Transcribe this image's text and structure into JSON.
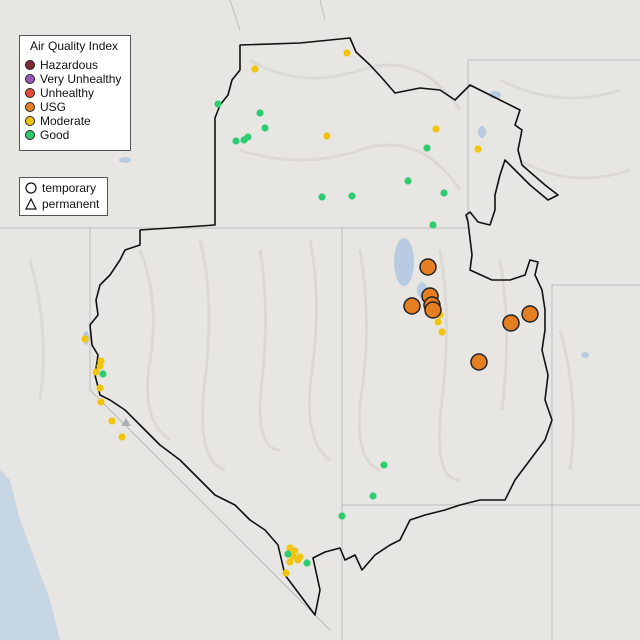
{
  "legend": {
    "aqi_title": "Air Quality Index",
    "aqi_items": [
      {
        "label": "Hazardous",
        "color": "#7e2a36"
      },
      {
        "label": "Very Unhealthy",
        "color": "#9b59b6"
      },
      {
        "label": "Unhealthy",
        "color": "#e74c3c"
      },
      {
        "label": "USG",
        "color": "#e67e22"
      },
      {
        "label": "Moderate",
        "color": "#f1c40f"
      },
      {
        "label": "Good",
        "color": "#2ecc71"
      }
    ],
    "type_items": [
      {
        "label": "temporary",
        "icon": "circle-icon"
      },
      {
        "label": "permanent",
        "icon": "triangle-icon"
      }
    ]
  },
  "colors": {
    "land": "#e8e6e3",
    "ocean": "#c6d6e3",
    "water": "#b9cbe0",
    "boundary": "#111111",
    "state_line": "#bcbcbc"
  }
}
